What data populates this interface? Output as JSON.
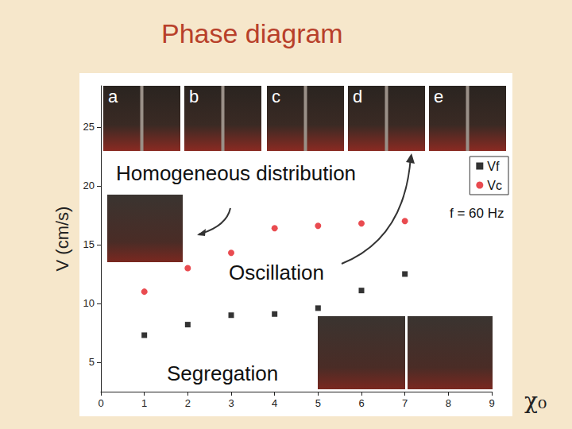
{
  "chart_data": {
    "type": "scatter",
    "title": "Phase diagram",
    "x_label": "χ₀",
    "y_label": "V (cm/s)",
    "x": [
      1,
      2,
      3,
      4,
      5,
      6,
      7
    ],
    "series": [
      {
        "name": "Vf",
        "color": "#000000",
        "marker": "square",
        "values": [
          7.3,
          8.2,
          9.0,
          9.1,
          9.6,
          11.1,
          12.5
        ]
      },
      {
        "name": "Vc",
        "color": "#e31e24",
        "marker": "circle",
        "values": [
          11.0,
          13.0,
          14.3,
          16.4,
          16.6,
          16.8,
          17.0
        ]
      }
    ],
    "xlim": [
      0,
      9
    ],
    "xticks": [
      0,
      1,
      2,
      3,
      4,
      5,
      6,
      7,
      8,
      9
    ],
    "ylim": [
      2.5,
      28.5
    ],
    "yticks": [
      5,
      10,
      15,
      20,
      25
    ],
    "grid": false,
    "legend": "upper right",
    "annotations": [
      "Homogeneous distribution",
      "Oscillation",
      "Segregation",
      "f = 60 Hz"
    ],
    "panel_labels": [
      "a",
      "b",
      "c",
      "d",
      "e"
    ]
  }
}
